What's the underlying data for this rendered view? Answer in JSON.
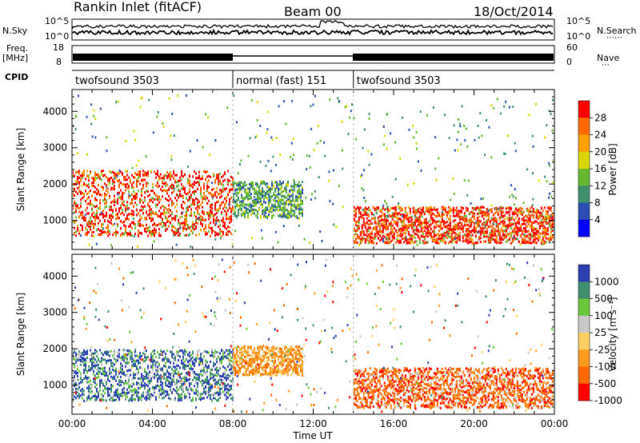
{
  "header": {
    "station": "Rankin Inlet (fitACF)",
    "beam": "Beam 00",
    "date": "18/Oct/2014"
  },
  "side_labels": {
    "nsky": "N.Sky",
    "nsearch": "N.Search",
    "freq": "Freq.",
    "mhz": "[MHz]",
    "nave": "Nave",
    "cpid": "CPID"
  },
  "noise_ticks": {
    "top": "10^5",
    "bottom": "10^0"
  },
  "freq_ticks": {
    "left_top": "18",
    "left_bottom": "8",
    "right_top": "60",
    "right_bottom": "0"
  },
  "cpid_segments": [
    {
      "label": "twofsound 3503",
      "start_hour": 0,
      "end_hour": 8
    },
    {
      "label": "normal (fast) 151",
      "start_hour": 8,
      "end_hour": 14
    },
    {
      "label": "twofsound 3503",
      "start_hour": 14,
      "end_hour": 24
    }
  ],
  "time_axis": {
    "label": "Time UT",
    "ticks": [
      "00:00",
      "04:00",
      "08:00",
      "12:00",
      "16:00",
      "20:00",
      "00:00"
    ]
  },
  "range_axis": {
    "label": "Slant Range [km]",
    "ticks": [
      "1000",
      "2000",
      "3000",
      "4000"
    ]
  },
  "chart_data": [
    {
      "type": "heatmap",
      "title": "Power",
      "x": "time (UT hours, 0–24)",
      "y": "slant range (km)",
      "ylim": [
        200,
        4600
      ],
      "colorbar": {
        "label": "Power [dB]",
        "ticks": [
          "28",
          "24",
          "20",
          "16",
          "12",
          "8",
          "4"
        ],
        "colors": [
          "#ff0000",
          "#ff6a00",
          "#ffa000",
          "#d8d800",
          "#66b833",
          "#3f8f6f",
          "#2a4fb0",
          "#0000ff"
        ]
      },
      "description_regions": [
        {
          "hours": [
            0,
            8
          ],
          "range_km": [
            600,
            2400
          ],
          "level_db": 24
        },
        {
          "hours": [
            8,
            11.5
          ],
          "range_km": [
            1100,
            2100
          ],
          "level_db": 12
        },
        {
          "hours": [
            14,
            24
          ],
          "range_km": [
            400,
            1400
          ],
          "level_db": 26
        }
      ]
    },
    {
      "type": "heatmap",
      "title": "Velocity",
      "x": "time (UT hours, 0–24)",
      "y": "slant range (km)",
      "ylim": [
        200,
        4600
      ],
      "colorbar": {
        "label": "Velocity [m s⁻¹]",
        "ticks": [
          "1000",
          "500",
          "100",
          "25",
          "-25",
          "-100",
          "-500",
          "-1000"
        ],
        "colors": [
          "#2a3fb0",
          "#3f8f6f",
          "#66c83a",
          "#c8c8c8",
          "#ffd060",
          "#ff9a20",
          "#ff6a00",
          "#ff0000"
        ]
      },
      "description_regions": [
        {
          "hours": [
            0,
            8
          ],
          "range_km": [
            600,
            2000
          ],
          "velocity": 500
        },
        {
          "hours": [
            8,
            11.5
          ],
          "range_km": [
            1300,
            2100
          ],
          "velocity": -100
        },
        {
          "hours": [
            14,
            24
          ],
          "range_km": [
            400,
            1500
          ],
          "velocity": -500
        }
      ]
    }
  ]
}
